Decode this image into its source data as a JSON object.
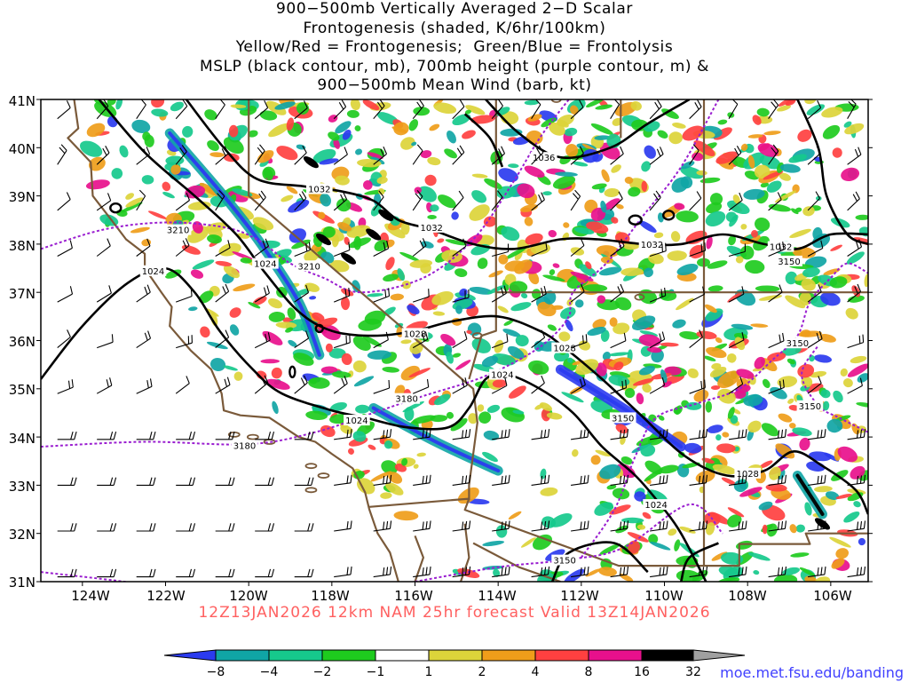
{
  "title_lines": [
    "900−500mb Vertically Averaged 2−D Scalar",
    "Frontogenesis (shaded, K/6hr/100km)",
    "Yellow/Red = Frontogenesis;  Green/Blue = Frontolysis",
    "MSLP (black contour, mb), 700mb height (purple contour, m) &",
    "900−500mb Mean Wind (barb, kt)"
  ],
  "lat_labels": [
    "41N",
    "40N",
    "39N",
    "38N",
    "37N",
    "36N",
    "35N",
    "34N",
    "33N",
    "32N",
    "31N"
  ],
  "lon_labels": [
    "124W",
    "122W",
    "120W",
    "118W",
    "116W",
    "114W",
    "112W",
    "110W",
    "108W",
    "106W"
  ],
  "valid_line": "12Z13JAN2026 12km NAM 25hr forecast Valid 13Z14JAN2026",
  "source_url": "moe.met.fsu.edu/banding",
  "colorbar": {
    "labels": [
      "−8",
      "−4",
      "−2",
      "−1",
      "1",
      "2",
      "4",
      "8",
      "16",
      "32"
    ],
    "colors": [
      "#2b3bef",
      "#10a5a5",
      "#16c98c",
      "#1ecb1e",
      "#ffffff",
      "#dcd43a",
      "#ef9d1a",
      "#ff4040",
      "#e8108c",
      "#000000",
      "#a0a0a0"
    ]
  },
  "mslp_labels": [
    {
      "text": "1032",
      "lon": -118.3,
      "lat": 39.15
    },
    {
      "text": "1032",
      "lon": -115.6,
      "lat": 38.35
    },
    {
      "text": "1036",
      "lon": -112.9,
      "lat": 39.8
    },
    {
      "text": "1032",
      "lon": -110.3,
      "lat": 38.0
    },
    {
      "text": "1032",
      "lon": -107.2,
      "lat": 37.95
    },
    {
      "text": "1024",
      "lon": -119.6,
      "lat": 37.6
    },
    {
      "text": "1024",
      "lon": -122.3,
      "lat": 37.45
    },
    {
      "text": "1028",
      "lon": -116.0,
      "lat": 36.15
    },
    {
      "text": "1028",
      "lon": -112.4,
      "lat": 35.85
    },
    {
      "text": "1024",
      "lon": -113.9,
      "lat": 35.3
    },
    {
      "text": "1024",
      "lon": -117.4,
      "lat": 34.35
    },
    {
      "text": "1028",
      "lon": -108.0,
      "lat": 33.25
    },
    {
      "text": "1024",
      "lon": -110.2,
      "lat": 32.6
    }
  ],
  "height_labels": [
    {
      "text": "3210",
      "lon": -121.7,
      "lat": 38.3
    },
    {
      "text": "3210",
      "lon": -118.55,
      "lat": 37.55
    },
    {
      "text": "3180",
      "lon": -116.2,
      "lat": 34.8
    },
    {
      "text": "3180",
      "lon": -120.1,
      "lat": 33.83
    },
    {
      "text": "3150",
      "lon": -111.0,
      "lat": 34.4
    },
    {
      "text": "3150",
      "lon": -107.0,
      "lat": 37.65
    },
    {
      "text": "3150",
      "lon": -106.8,
      "lat": 35.95
    },
    {
      "text": "3150",
      "lon": -106.5,
      "lat": 34.65
    },
    {
      "text": "3150",
      "lon": -112.4,
      "lat": 31.45
    }
  ],
  "colors": {
    "mslp": "#000000",
    "height": "#9a1ed0",
    "coast": "#7a5a3a",
    "barb": "#000000",
    "title": "#000000",
    "valid": "#ff6060",
    "url": "#4040ff"
  }
}
